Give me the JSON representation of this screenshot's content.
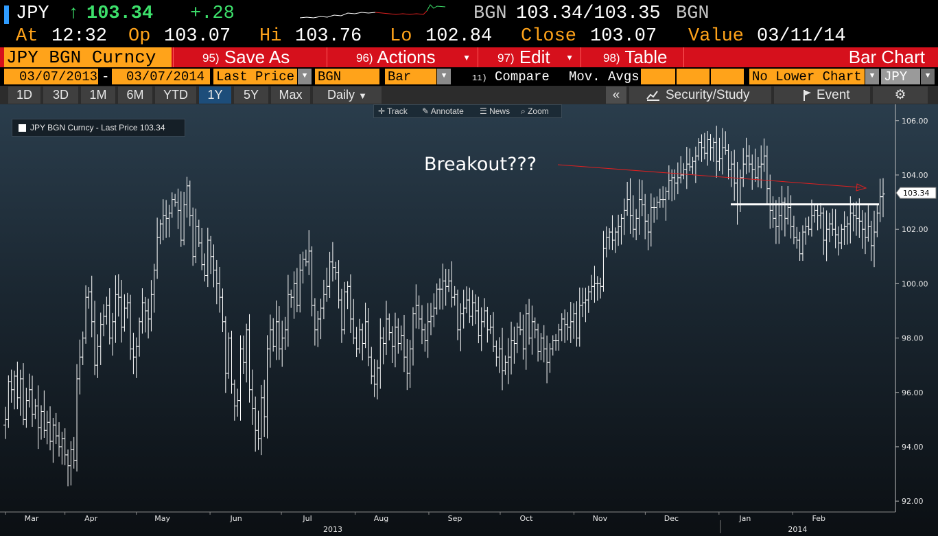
{
  "ticker_line": {
    "ticker": "JPY",
    "arrow": "↑",
    "last": "103.34",
    "change": "+.28",
    "source": "BGN",
    "bid_ask": "103.34/103.35",
    "source2": "BGN"
  },
  "info_line": {
    "at_label": "At",
    "at_value": "12:32",
    "op_label": "Op",
    "op_value": "103.07",
    "hi_label": "Hi",
    "hi_value": "103.76",
    "lo_label": "Lo",
    "lo_value": "102.84",
    "close_label": "Close",
    "close_value": "103.07",
    "value_label": "Value",
    "value_value": "03/11/14"
  },
  "function_bar": {
    "security": "JPY BGN Curncy",
    "save_num": "95)",
    "save_label": "Save As",
    "actions_num": "96)",
    "actions_label": "Actions",
    "edit_num": "97)",
    "edit_label": "Edit",
    "table_num": "98)",
    "table_label": "Table",
    "title": "Bar Chart"
  },
  "params": {
    "start_date": "03/07/2013",
    "dash": "-",
    "end_date": "03/07/2014",
    "field": "Last Price",
    "source": "BGN",
    "chart_type": "Bar",
    "compare_num": "11)",
    "compare_label": "Compare",
    "mov_avgs": "Mov. Avgs",
    "lower_chart": "No Lower Chart",
    "currency": "JPY"
  },
  "timeline": {
    "tabs": [
      "1D",
      "3D",
      "1M",
      "6M",
      "YTD",
      "1Y",
      "5Y",
      "Max"
    ],
    "active": "1Y",
    "period": "Daily",
    "collapse": "«",
    "security_study": "Security/Study",
    "event": "Event"
  },
  "chart_tools": {
    "track": "Track",
    "annotate": "Annotate",
    "news": "News",
    "zoom": "Zoom"
  },
  "legend": {
    "label": "JPY BGN Curncy - Last Price 103.34"
  },
  "annotation": {
    "text": "Breakout???"
  },
  "colors": {
    "accent_orange": "#ffa31a",
    "function_red": "#d6101c",
    "up_green": "#3de06b",
    "arrow_red": "#e02020",
    "active_tab": "#1d4d7a"
  },
  "chart_data": {
    "type": "bar",
    "title": "",
    "ylim": [
      91.6,
      106.6
    ],
    "yticks": [
      92,
      94,
      96,
      98,
      100,
      102,
      104,
      106
    ],
    "ytick_labels": [
      "92.00",
      "94.00",
      "96.00",
      "98.00",
      "100.00",
      "102.00",
      "104.00",
      "106.00"
    ],
    "last_price_label": "103.34",
    "last_price": 103.34,
    "support_level": 102.92,
    "months": [
      {
        "label": "Mar",
        "x": "2013-03-07"
      },
      {
        "label": "Apr",
        "x": "2013-04-01"
      },
      {
        "label": "May",
        "x": "2013-05-01"
      },
      {
        "label": "Jun",
        "x": "2013-06-01"
      },
      {
        "label": "Jul",
        "x": "2013-07-01"
      },
      {
        "label": "Aug",
        "x": "2013-08-01"
      },
      {
        "label": "Sep",
        "x": "2013-09-01"
      },
      {
        "label": "Oct",
        "x": "2013-10-01"
      },
      {
        "label": "Nov",
        "x": "2013-11-01"
      },
      {
        "label": "Dec",
        "x": "2013-12-01"
      },
      {
        "label": "Jan",
        "x": "2014-01-01"
      },
      {
        "label": "Feb",
        "x": "2014-02-01"
      }
    ],
    "years": [
      {
        "label": "2013"
      },
      {
        "label": "2014"
      }
    ],
    "closes": [
      95.0,
      96.4,
      96.1,
      96.6,
      95.8,
      96.5,
      95.0,
      95.7,
      96.1,
      95.2,
      95.5,
      94.7,
      95.3,
      94.6,
      94.9,
      94.2,
      94.8,
      94.4,
      94.0,
      94.3,
      93.7,
      93.3,
      93.9,
      93.5,
      96.5,
      97.3,
      98.0,
      99.5,
      99.7,
      98.6,
      97.0,
      97.7,
      98.5,
      98.8,
      99.2,
      98.0,
      98.6,
      99.6,
      99.5,
      98.4,
      99.1,
      99.3,
      97.6,
      97.3,
      97.7,
      98.6,
      99.3,
      99.0,
      98.7,
      99.6,
      100.5,
      101.7,
      102.2,
      102.5,
      102.4,
      102.6,
      103.1,
      103.0,
      102.7,
      101.6,
      102.9,
      103.6,
      102.5,
      101.0,
      102.1,
      101.5,
      100.7,
      100.3,
      101.6,
      101.0,
      100.5,
      100.0,
      99.5,
      98.6,
      96.7,
      98.0,
      96.3,
      95.5,
      95.7,
      97.6,
      97.1,
      98.3,
      96.1,
      95.4,
      94.6,
      94.3,
      95.8,
      95.1,
      97.6,
      98.3,
      97.7,
      98.6,
      97.6,
      98.0,
      98.3,
      99.6,
      99.5,
      100.0,
      99.2,
      100.5,
      100.9,
      100.8,
      101.2,
      99.2,
      98.3,
      98.7,
      99.1,
      99.6,
      99.9,
      100.8,
      100.6,
      100.4,
      99.4,
      98.3,
      99.7,
      99.9,
      98.7,
      98.0,
      97.6,
      98.3,
      97.8,
      98.6,
      97.3,
      96.6,
      96.3,
      96.9,
      98.0,
      97.8,
      98.7,
      98.2,
      97.7,
      98.4,
      97.8,
      98.1,
      97.3,
      96.7,
      97.6,
      98.9,
      99.2,
      98.7,
      98.3,
      97.9,
      98.6,
      98.8,
      99.1,
      99.8,
      99.8,
      100.1,
      99.9,
      100.1,
      99.5,
      99.6,
      98.3,
      98.9,
      99.1,
      99.4,
      98.8,
      99.3,
      99.0,
      98.1,
      98.6,
      99.0,
      98.3,
      98.4,
      97.7,
      97.3,
      97.6,
      96.8,
      97.1,
      97.3,
      97.9,
      97.8,
      98.4,
      98.3,
      97.6,
      98.9,
      98.0,
      98.6,
      98.3,
      97.5,
      98.0,
      97.6,
      97.1,
      97.6,
      97.9,
      97.9,
      98.3,
      98.7,
      98.5,
      98.4,
      98.6,
      98.9,
      98.0,
      99.2,
      99.3,
      99.4,
      99.7,
      99.9,
      100.0,
      100.0,
      99.9,
      101.3,
      101.7,
      101.9,
      101.6,
      101.9,
      102.1,
      102.4,
      102.7,
      103.1,
      102.5,
      102.0,
      102.4,
      103.1,
      102.9,
      102.3,
      101.9,
      102.8,
      102.8,
      103.0,
      103.1,
      103.1,
      103.4,
      103.8,
      103.9,
      103.7,
      103.9,
      104.0,
      104.2,
      104.4,
      104.3,
      104.5,
      104.7,
      105.2,
      105.0,
      104.8,
      105.3,
      105.0,
      105.2,
      104.5,
      104.6,
      105.0,
      104.9,
      104.2,
      104.4,
      103.7,
      102.9,
      103.9,
      104.4,
      104.7,
      104.4,
      104.2,
      103.9,
      104.3,
      104.4,
      104.7,
      103.5,
      102.7,
      102.4,
      102.1,
      102.5,
      103.0,
      102.4,
      102.8,
      102.1,
      101.7,
      101.6,
      101.1,
      101.9,
      102.1,
      102.0,
      102.5,
      102.7,
      102.5,
      102.6,
      101.6,
      102.0,
      102.2,
      102.0,
      101.8,
      101.5,
      102.0,
      102.1,
      102.2,
      102.6,
      102.5,
      102.4,
      102.3,
      102.0,
      101.7,
      102.1,
      101.4,
      101.9,
      102.6,
      103.2,
      103.3
    ]
  }
}
